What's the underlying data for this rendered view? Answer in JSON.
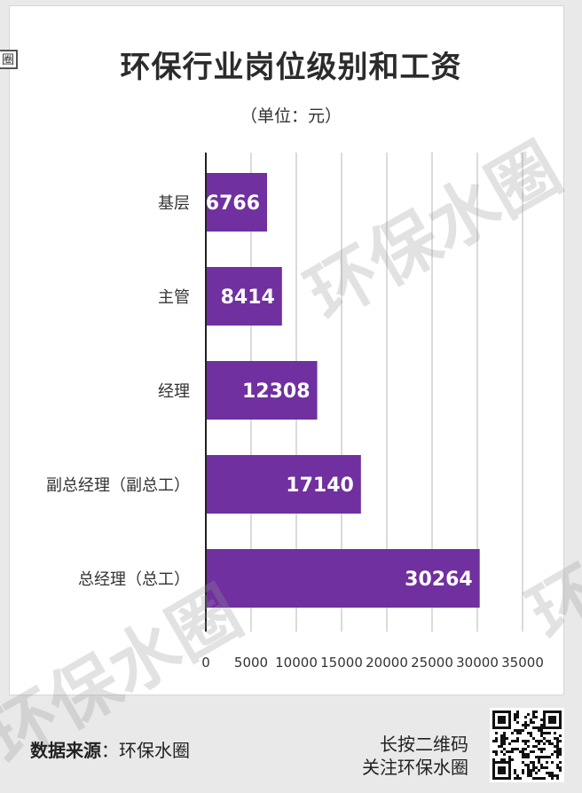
{
  "header": {
    "title": "环保行业岗位级别和工资",
    "unit": "（单位：元）"
  },
  "watermark_text": "环保水圈",
  "edge_mark": "圈",
  "chart_data": {
    "type": "bar",
    "orientation": "horizontal",
    "title": "环保行业岗位级别和工资",
    "subtitle": "（单位：元）",
    "categories": [
      "基层",
      "主管",
      "经理",
      "副总经理（副总工）",
      "总经理（总工）"
    ],
    "values": [
      6766,
      8414,
      12308,
      17140,
      30264
    ],
    "value_labels": [
      "6766",
      "8414",
      "12308",
      "17140",
      "30264"
    ],
    "xlim": [
      0,
      35000
    ],
    "x_ticks": [
      0,
      5000,
      10000,
      15000,
      20000,
      25000,
      30000,
      35000
    ],
    "x_tick_labels": [
      "0",
      "5000",
      "10000",
      "15000",
      "20000",
      "25000",
      "30000",
      "35000"
    ],
    "grid": true,
    "bar_color": "#7030a0"
  },
  "footer": {
    "source_label": "数据来源",
    "source_value": "：环保水圈",
    "cta_line1": "长按二维码",
    "cta_line2": "关注环保水圈"
  }
}
